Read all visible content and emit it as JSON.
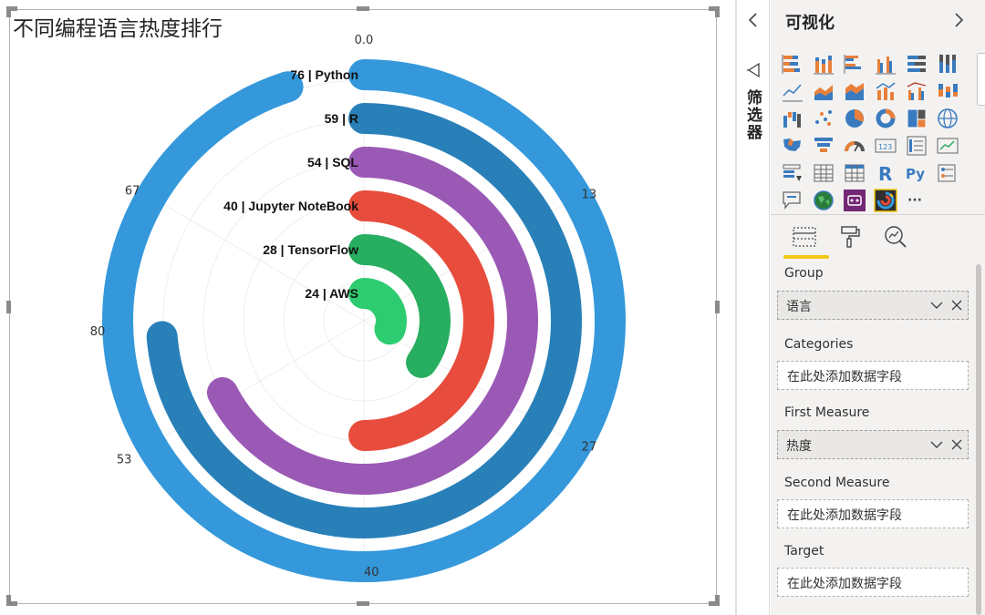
{
  "visual": {
    "title": "不同编程语言热度排行"
  },
  "chart_data": {
    "type": "radial-bar",
    "title": "不同编程语言热度排行",
    "axis_max": 80,
    "axis_ticks": [
      "0.0",
      "13",
      "27",
      "40",
      "53",
      "67",
      "80"
    ],
    "tick_values": [
      0,
      13.3,
      26.7,
      40,
      53.3,
      66.7
    ],
    "categories": [
      "Python",
      "R",
      "SQL",
      "Jupyter NoteBook",
      "TensorFlow",
      "AWS"
    ],
    "values": [
      76,
      59,
      54,
      40,
      28,
      24
    ],
    "labels": [
      "76 | Python",
      "59 | R",
      "54 | SQL",
      "40 | Jupyter NoteBook",
      "28 | TensorFlow",
      "24 | AWS"
    ],
    "colors": [
      "#3498db",
      "#2980b9",
      "#9b59b6",
      "#e74c3c",
      "#27ae60",
      "#2ecc71"
    ]
  },
  "filter_pane": {
    "collapse_icon": "chevron-left-icon",
    "label": "筛选器"
  },
  "viz_pane": {
    "title": "可视化",
    "expand_icon": "chevron-right-icon",
    "more_label": "···",
    "r_label": "R",
    "py_label": "Py",
    "wells": {
      "group_label": "Group",
      "group_value": "语言",
      "categories_label": "Categories",
      "categories_placeholder": "在此处添加数据字段",
      "first_measure_label": "First Measure",
      "first_measure_value": "热度",
      "second_measure_label": "Second Measure",
      "second_measure_placeholder": "在此处添加数据字段",
      "target_label": "Target",
      "target_placeholder": "在此处添加数据字段"
    }
  }
}
